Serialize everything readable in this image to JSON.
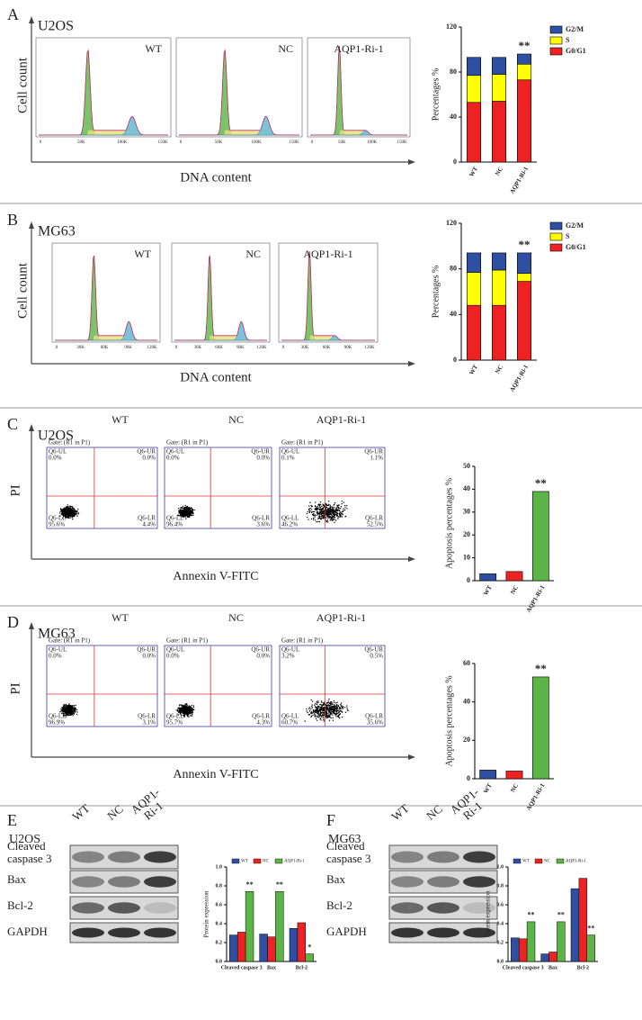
{
  "panels": [
    {
      "letter": "A",
      "cell_line": "U2OS",
      "samples": [
        "WT",
        "NC",
        "AQP1-Ri-1"
      ],
      "y_label": "Cell count",
      "x_label": "DNA content",
      "x_ticks": [
        "0",
        "50K",
        "100K",
        "150K"
      ]
    },
    {
      "letter": "B",
      "cell_line": "MG63",
      "samples": [
        "WT",
        "NC",
        "AQP1-Ri-1"
      ],
      "y_label": "Cell count",
      "x_label": "DNA content",
      "x_ticks": [
        "0",
        "30K",
        "60K",
        "90K",
        "120K"
      ]
    },
    {
      "letter": "C",
      "cell_line": "U2OS",
      "samples": [
        "WT",
        "NC",
        "AQP1-Ri-1"
      ],
      "y_label": "PI",
      "x_label": "Annexin V-FITC",
      "gate": "Gate: (R1 in P1)",
      "quadrants": [
        [
          {
            "name": "Q6-UL",
            "value": "0.0%"
          },
          {
            "name": "Q6-UR",
            "value": "0.0%"
          },
          {
            "name": "Q6-LL",
            "value": "95.6%"
          },
          {
            "name": "Q6-LR",
            "value": "4.4%"
          }
        ],
        [
          {
            "name": "Q6-UL",
            "value": "0.0%"
          },
          {
            "name": "Q6-UR",
            "value": "0.0%"
          },
          {
            "name": "Q6-LL",
            "value": "96.4%"
          },
          {
            "name": "Q6-LR",
            "value": "3.6%"
          }
        ],
        [
          {
            "name": "Q6-UL",
            "value": "0.1%"
          },
          {
            "name": "Q6-UR",
            "value": "1.1%"
          },
          {
            "name": "Q6-LL",
            "value": "46.2%"
          },
          {
            "name": "Q6-LR",
            "value": "52.5%"
          }
        ]
      ]
    },
    {
      "letter": "D",
      "cell_line": "MG63",
      "samples": [
        "WT",
        "NC",
        "AQP1-Ri-1"
      ],
      "y_label": "PI",
      "x_label": "Annexin V-FITC",
      "gate": "Gate: (R1 in P1)",
      "quadrants": [
        [
          {
            "name": "Q6-UL",
            "value": "0.0%"
          },
          {
            "name": "Q6-UR",
            "value": "0.0%"
          },
          {
            "name": "Q6-LL",
            "value": "96.9%"
          },
          {
            "name": "Q6-LR",
            "value": "3.1%"
          }
        ],
        [
          {
            "name": "Q6-UL",
            "value": "0.0%"
          },
          {
            "name": "Q6-UR",
            "value": "0.0%"
          },
          {
            "name": "Q6-LL",
            "value": "95.7%"
          },
          {
            "name": "Q6-LR",
            "value": "4.3%"
          }
        ],
        [
          {
            "name": "Q6-UL",
            "value": "3.2%"
          },
          {
            "name": "Q6-UR",
            "value": "0.5%"
          },
          {
            "name": "Q6-LL",
            "value": "60.7%"
          },
          {
            "name": "Q6-LR",
            "value": "35.6%"
          }
        ]
      ]
    },
    {
      "letter": "E",
      "cell_line": "U2OS",
      "lanes": [
        "WT",
        "NC",
        "AQP1-Ri-1"
      ],
      "proteins": [
        "Cleaved caspase 3",
        "Bax",
        "Bcl-2",
        "GAPDH"
      ]
    },
    {
      "letter": "F",
      "cell_line": "MG63",
      "lanes": [
        "WT",
        "NC",
        "AQP1-Ri-1"
      ],
      "proteins": [
        "Cleaved caspase 3",
        "Bax",
        "Bcl-2",
        "GAPDH"
      ]
    }
  ],
  "chart_data": [
    {
      "type": "stacked_bar",
      "y_label": "Percentages %",
      "categories": [
        "WT",
        "NC",
        "AQP1-Ri-1"
      ],
      "ylim": [
        0,
        120
      ],
      "yticks": [
        0,
        40,
        80,
        120
      ],
      "series": [
        {
          "name": "G0/G1",
          "color": "#ee2222",
          "values": [
            53,
            54,
            73
          ]
        },
        {
          "name": "S",
          "color": "#ffff00",
          "values": [
            24,
            24,
            14
          ]
        },
        {
          "name": "G2/M",
          "color": "#2f4fa3",
          "values": [
            16,
            15,
            9
          ]
        }
      ],
      "annotations": [
        {
          "category": "AQP1-Ri-1",
          "text": "**"
        }
      ]
    },
    {
      "type": "stacked_bar",
      "y_label": "Percentages %",
      "categories": [
        "WT",
        "NC",
        "AQP1-Ri-1"
      ],
      "ylim": [
        0,
        120
      ],
      "yticks": [
        0,
        40,
        80,
        120
      ],
      "series": [
        {
          "name": "G0/G1",
          "color": "#ee2222",
          "values": [
            48,
            48,
            69
          ]
        },
        {
          "name": "S",
          "color": "#ffff00",
          "values": [
            29,
            31,
            7
          ]
        },
        {
          "name": "G2/M",
          "color": "#2f4fa3",
          "values": [
            17,
            15,
            18
          ]
        }
      ],
      "annotations": [
        {
          "category": "AQP1-Ri-1",
          "text": "**"
        }
      ]
    },
    {
      "type": "bar",
      "y_label": "Apoptosis percentages %",
      "categories": [
        "WT",
        "NC",
        "AQP1-Ri-1"
      ],
      "values": [
        3,
        4,
        39
      ],
      "colors": [
        "#2f4fa3",
        "#ee2222",
        "#5db446"
      ],
      "ylim": [
        0,
        50
      ],
      "yticks": [
        0,
        10,
        20,
        30,
        40,
        50
      ],
      "annotations": [
        {
          "category": "AQP1-Ri-1",
          "text": "**"
        }
      ]
    },
    {
      "type": "bar",
      "y_label": "Apoptosis percentages %",
      "categories": [
        "WT",
        "NC",
        "AQP1-Ri-1"
      ],
      "values": [
        4.5,
        4,
        53
      ],
      "colors": [
        "#2f4fa3",
        "#ee2222",
        "#5db446"
      ],
      "ylim": [
        0,
        60
      ],
      "yticks": [
        0,
        20,
        40,
        60
      ],
      "annotations": [
        {
          "category": "AQP1-Ri-1",
          "text": "**"
        }
      ]
    },
    {
      "type": "grouped_bar",
      "y_label": "Protein expression",
      "categories": [
        "Cleaved caspase 3",
        "Bax",
        "Bcl-2"
      ],
      "ylim": [
        0,
        1.0
      ],
      "yticks": [
        {
          "value": 0,
          "label": "0.0"
        },
        0.2,
        0.4,
        0.6,
        0.8,
        {
          "value": 1.0,
          "label": "1.0"
        }
      ],
      "series": [
        {
          "name": "WT",
          "color": "#2f4fa3",
          "values": [
            0.28,
            0.29,
            0.35
          ]
        },
        {
          "name": "NC",
          "color": "#ee2222",
          "values": [
            0.31,
            0.26,
            0.41
          ]
        },
        {
          "name": "AQP1-Ri-1",
          "color": "#5db446",
          "values": [
            0.74,
            0.74,
            0.08
          ]
        }
      ],
      "annotations": [
        {
          "category": "Cleaved caspase 3",
          "series": "AQP1-Ri-1",
          "text": "**"
        },
        {
          "category": "Bax",
          "series": "AQP1-Ri-1",
          "text": "**"
        },
        {
          "category": "Bcl-2",
          "series": "AQP1-Ri-1",
          "text": "*"
        }
      ]
    },
    {
      "type": "grouped_bar",
      "y_label": "Protein expression",
      "categories": [
        "Cleaved caspase 3",
        "Bax",
        "Bcl-2"
      ],
      "ylim": [
        0,
        1.0
      ],
      "yticks": [
        {
          "value": 0,
          "label": "0.0"
        },
        0.2,
        0.4,
        0.6,
        0.8,
        {
          "value": 1.0,
          "label": "1.0"
        }
      ],
      "series": [
        {
          "name": "WT",
          "color": "#2f4fa3",
          "values": [
            0.25,
            0.08,
            0.77
          ]
        },
        {
          "name": "NC",
          "color": "#ee2222",
          "values": [
            0.24,
            0.1,
            0.88
          ]
        },
        {
          "name": "AQP1-Ri-1",
          "color": "#5db446",
          "values": [
            0.42,
            0.42,
            0.28
          ]
        }
      ],
      "annotations": [
        {
          "category": "Cleaved caspase 3",
          "series": "AQP1-Ri-1",
          "text": "**"
        },
        {
          "category": "Bax",
          "series": "AQP1-Ri-1",
          "text": "**"
        },
        {
          "category": "Bcl-2",
          "series": "AQP1-Ri-1",
          "text": "**"
        }
      ]
    }
  ]
}
